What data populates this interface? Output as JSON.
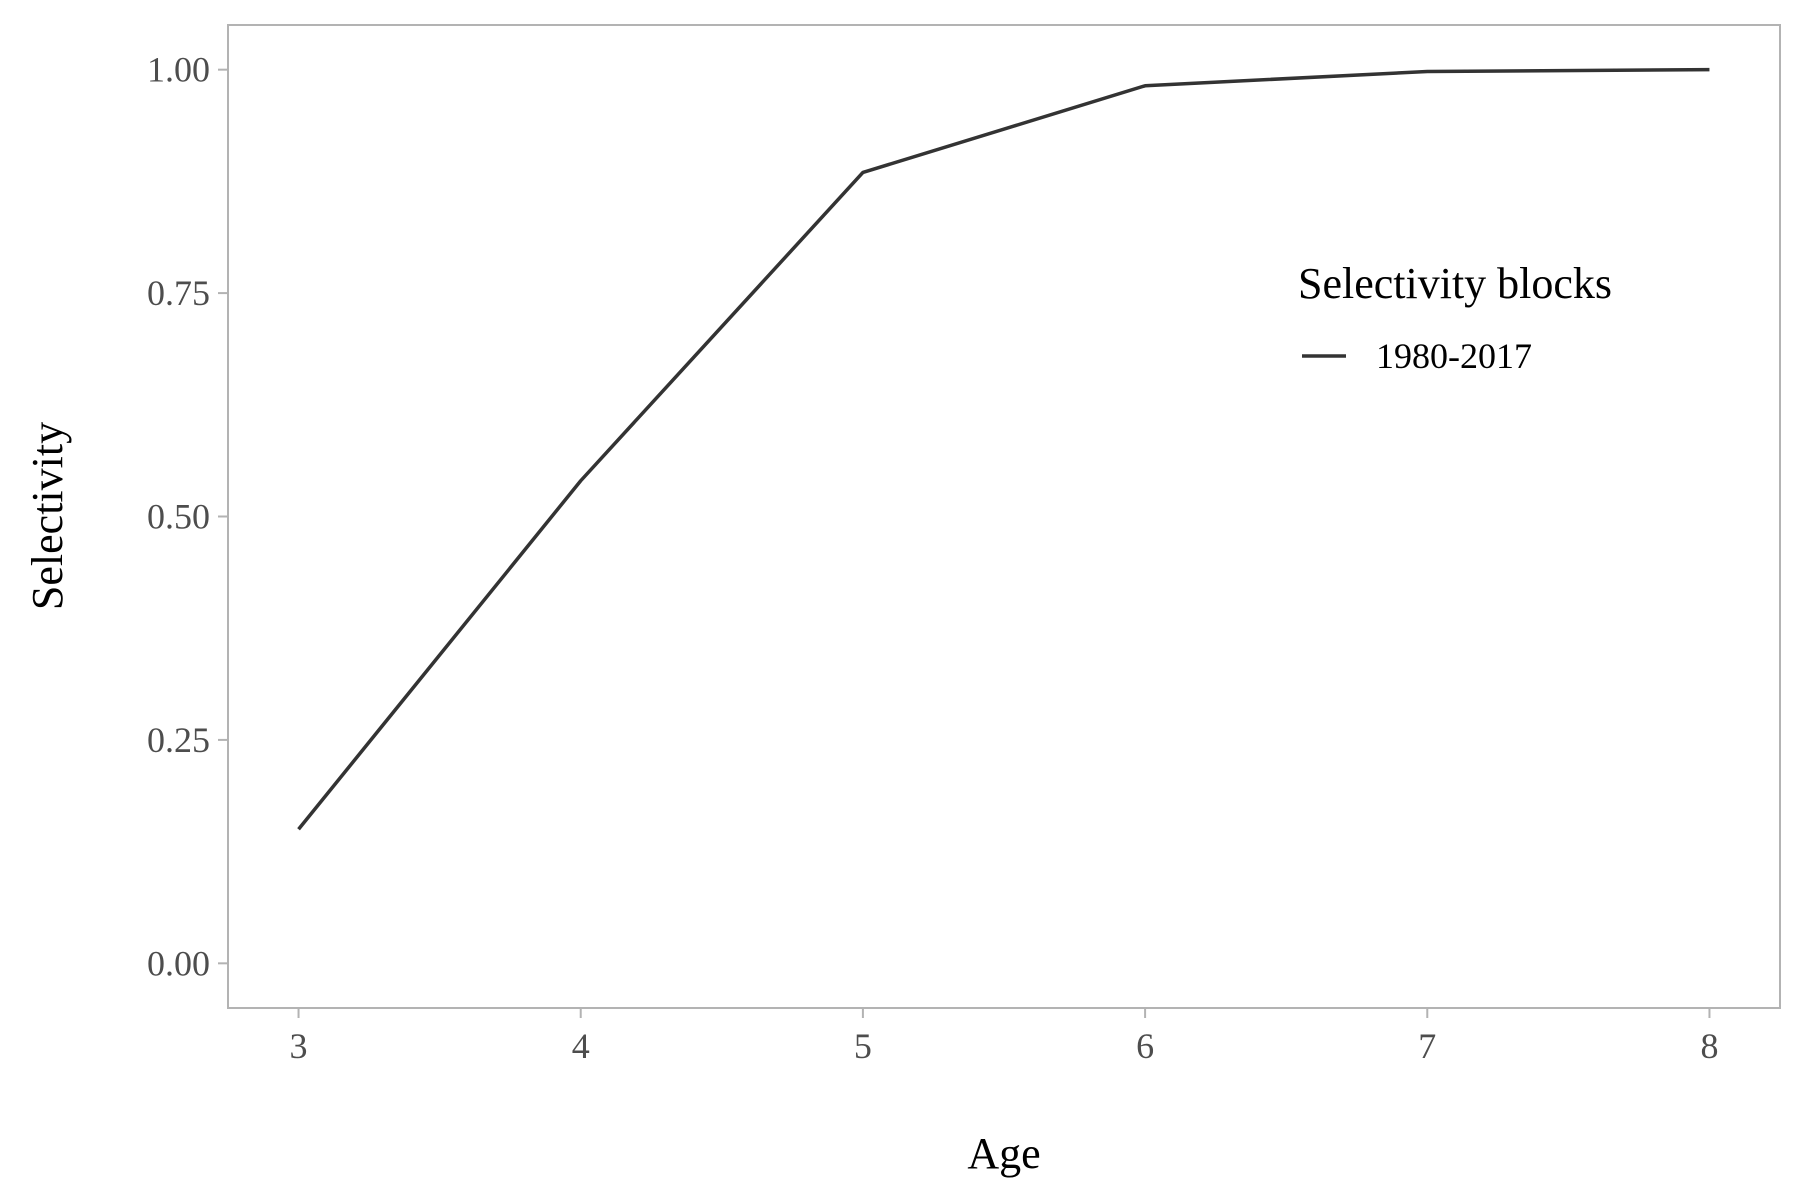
{
  "chart_data": {
    "type": "line",
    "xlabel": "Age",
    "ylabel": "Selectivity",
    "xlim": [
      2.75,
      8.25
    ],
    "ylim": [
      -0.05,
      1.05
    ],
    "x_ticks": [
      3,
      4,
      5,
      6,
      7,
      8
    ],
    "x_tick_labels": [
      "3",
      "4",
      "5",
      "6",
      "7",
      "8"
    ],
    "y_ticks": [
      0.0,
      0.25,
      0.5,
      0.75,
      1.0
    ],
    "y_tick_labels": [
      "0.00",
      "0.25",
      "0.50",
      "0.75",
      "1.00"
    ],
    "grid": false,
    "legend": {
      "title": "Selectivity blocks",
      "placement": "inside right"
    },
    "series": [
      {
        "name": "1980-2017",
        "color": "#333333",
        "x": [
          3,
          4,
          5,
          6,
          7,
          8
        ],
        "y": [
          0.15,
          0.54,
          0.885,
          0.982,
          0.998,
          1.0
        ]
      }
    ]
  }
}
